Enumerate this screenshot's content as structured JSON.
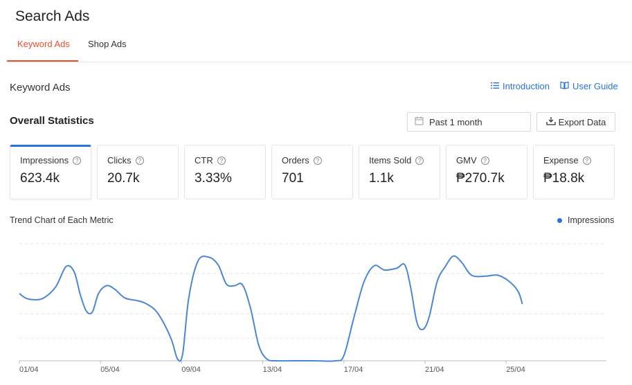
{
  "page": {
    "title": "Search Ads"
  },
  "tabs": [
    {
      "label": "Keyword Ads",
      "active": true
    },
    {
      "label": "Shop Ads",
      "active": false
    }
  ],
  "section": {
    "title": "Keyword Ads",
    "introduction_label": "Introduction",
    "user_guide_label": "User Guide"
  },
  "stats": {
    "title": "Overall Statistics",
    "date_range": "Past 1 month",
    "export_label": "Export Data"
  },
  "metrics": [
    {
      "label": "Impressions",
      "value": "623.4k",
      "active": true
    },
    {
      "label": "Clicks",
      "value": "20.7k"
    },
    {
      "label": "CTR",
      "value": "3.33%"
    },
    {
      "label": "Orders",
      "value": "701"
    },
    {
      "label": "Items Sold",
      "value": "1.1k"
    },
    {
      "label": "GMV",
      "value": "₱270.7k"
    },
    {
      "label": "Expense",
      "value": "₱18.8k"
    }
  ],
  "trend": {
    "title": "Trend Chart of Each Metric",
    "legend": "Impressions"
  },
  "colors": {
    "accent": "#ee4d2d",
    "link": "#2673dd",
    "series": "#4a86d4"
  },
  "chart_data": {
    "type": "line",
    "x_tick_labels": [
      "01/04",
      "05/04",
      "09/04",
      "13/04",
      "17/04",
      "21/04",
      "25/04"
    ],
    "series": [
      {
        "name": "Impressions",
        "points": [
          [
            0,
            0.77
          ],
          [
            0.3,
            0.72
          ],
          [
            0.7,
            0.7
          ],
          [
            1.2,
            0.72
          ],
          [
            1.8,
            0.85
          ],
          [
            2.3,
            1.08
          ],
          [
            2.7,
            1.02
          ],
          [
            3.0,
            0.76
          ],
          [
            3.3,
            0.57
          ],
          [
            3.6,
            0.56
          ],
          [
            3.9,
            0.77
          ],
          [
            4.3,
            0.86
          ],
          [
            4.7,
            0.82
          ],
          [
            5.2,
            0.72
          ],
          [
            5.8,
            0.69
          ],
          [
            6.2,
            0.66
          ],
          [
            6.7,
            0.58
          ],
          [
            7.1,
            0.44
          ],
          [
            7.5,
            0.24
          ],
          [
            7.8,
            0.02
          ],
          [
            8.05,
            0.08
          ],
          [
            8.35,
            0.72
          ],
          [
            8.8,
            1.14
          ],
          [
            9.3,
            1.19
          ],
          [
            9.8,
            1.1
          ],
          [
            10.2,
            0.88
          ],
          [
            10.6,
            0.86
          ],
          [
            11.0,
            0.87
          ],
          [
            11.4,
            0.6
          ],
          [
            11.8,
            0.18
          ],
          [
            12.2,
            0.02
          ],
          [
            12.7,
            0.0
          ],
          [
            13.5,
            0.0
          ],
          [
            14.5,
            0.0
          ],
          [
            15.6,
            0.0
          ],
          [
            16.0,
            0.06
          ],
          [
            16.5,
            0.5
          ],
          [
            17.0,
            0.91
          ],
          [
            17.5,
            1.09
          ],
          [
            18.0,
            1.04
          ],
          [
            18.6,
            1.06
          ],
          [
            19.0,
            1.1
          ],
          [
            19.3,
            0.83
          ],
          [
            19.6,
            0.44
          ],
          [
            19.9,
            0.36
          ],
          [
            20.2,
            0.5
          ],
          [
            20.6,
            0.91
          ],
          [
            21.0,
            1.08
          ],
          [
            21.4,
            1.2
          ],
          [
            21.8,
            1.13
          ],
          [
            22.3,
            0.98
          ],
          [
            23.0,
            0.97
          ],
          [
            23.6,
            0.98
          ],
          [
            24.2,
            0.9
          ],
          [
            24.6,
            0.79
          ],
          [
            24.8,
            0.65
          ]
        ]
      }
    ]
  }
}
